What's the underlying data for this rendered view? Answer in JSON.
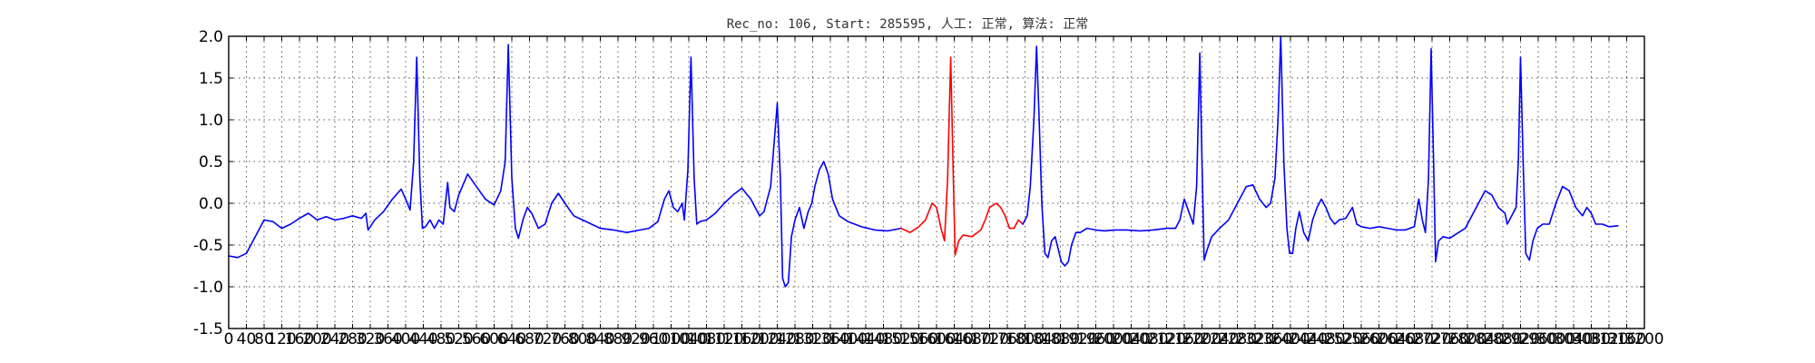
{
  "chart_data": {
    "type": "line",
    "title": "Rec_no: 106, Start: 285595, 人工: 正常, 算法: 正常",
    "xlabel": "",
    "ylabel": "",
    "xlim": [
      0,
      3200
    ],
    "ylim": [
      -1.5,
      2.0
    ],
    "grid": true,
    "y_ticks": [
      -1.5,
      -1.0,
      -0.5,
      0.0,
      0.5,
      1.0,
      1.5,
      2.0
    ],
    "y_tick_labels": [
      "-1.5",
      "-1.0",
      "-0.5",
      "0.0",
      "0.5",
      "1.0",
      "1.5",
      "2.0"
    ],
    "x_ticks": [
      0,
      40,
      80,
      120,
      160,
      200,
      240,
      280,
      320,
      360,
      400,
      440,
      480,
      520,
      560,
      600,
      640,
      680,
      720,
      760,
      800,
      840,
      880,
      920,
      960,
      1000,
      1040,
      1080,
      1120,
      1160,
      1200,
      1240,
      1280,
      1320,
      1360,
      1400,
      1440,
      1480,
      1520,
      1560,
      1600,
      1640,
      1680,
      1720,
      1760,
      1800,
      1840,
      1880,
      1920,
      1960,
      2000,
      2040,
      2080,
      2120,
      2160,
      2200,
      2240,
      2280,
      2320,
      2360,
      2400,
      2440,
      2480,
      2520,
      2560,
      2600,
      2640,
      2680,
      2720,
      2760,
      2800,
      2840,
      2880,
      2920,
      2960,
      3000,
      3040,
      3080,
      3120,
      3160,
      3200
    ],
    "x_tick_labels": [
      "0",
      "40",
      "80",
      "120",
      "160",
      "200",
      "240",
      "280",
      "320",
      "360",
      "400",
      "440",
      "480",
      "520",
      "560",
      "600",
      "640",
      "680",
      "720",
      "760",
      "800",
      "840",
      "880",
      "920",
      "960",
      "1000",
      "1040",
      "1080",
      "1120",
      "1160",
      "1200",
      "1240",
      "1280",
      "1320",
      "1360",
      "1400",
      "1440",
      "1480",
      "1520",
      "1560",
      "1600",
      "1640",
      "1680",
      "1720",
      "1760",
      "1800",
      "1840",
      "1880",
      "1920",
      "1960",
      "2000",
      "2040",
      "2080",
      "2120",
      "2160",
      "2200",
      "2240",
      "2280",
      "2320",
      "2360",
      "2400",
      "2440",
      "2480",
      "2520",
      "2560",
      "2600",
      "2640",
      "2680",
      "2720",
      "2760",
      "2800",
      "2840",
      "2880",
      "2920",
      "2960",
      "3000",
      "3040",
      "3080",
      "3120",
      "3160",
      "3200"
    ],
    "series": [
      {
        "color": "#0000ff",
        "points": [
          [
            0,
            -0.63
          ],
          [
            20,
            -0.65
          ],
          [
            40,
            -0.6
          ],
          [
            60,
            -0.4
          ],
          [
            80,
            -0.2
          ],
          [
            100,
            -0.22
          ],
          [
            120,
            -0.3
          ],
          [
            140,
            -0.25
          ],
          [
            160,
            -0.18
          ],
          [
            180,
            -0.12
          ],
          [
            200,
            -0.2
          ],
          [
            220,
            -0.16
          ],
          [
            240,
            -0.2
          ],
          [
            260,
            -0.18
          ],
          [
            280,
            -0.15
          ],
          [
            300,
            -0.18
          ],
          [
            310,
            -0.12
          ],
          [
            315,
            -0.32
          ],
          [
            330,
            -0.2
          ],
          [
            350,
            -0.1
          ],
          [
            370,
            0.05
          ],
          [
            390,
            0.17
          ],
          [
            400,
            0.05
          ],
          [
            410,
            -0.08
          ],
          [
            418,
            0.5
          ],
          [
            425,
            1.75
          ],
          [
            432,
            0.3
          ],
          [
            438,
            -0.3
          ],
          [
            445,
            -0.28
          ],
          [
            455,
            -0.2
          ],
          [
            465,
            -0.3
          ],
          [
            475,
            -0.2
          ],
          [
            485,
            -0.25
          ],
          [
            495,
            0.25
          ],
          [
            500,
            -0.05
          ],
          [
            510,
            -0.1
          ],
          [
            520,
            0.1
          ],
          [
            540,
            0.35
          ],
          [
            560,
            0.2
          ],
          [
            580,
            0.05
          ],
          [
            600,
            -0.02
          ],
          [
            615,
            0.15
          ],
          [
            625,
            0.5
          ],
          [
            632,
            1.9
          ],
          [
            640,
            0.3
          ],
          [
            648,
            -0.3
          ],
          [
            655,
            -0.42
          ],
          [
            665,
            -0.2
          ],
          [
            675,
            -0.05
          ],
          [
            685,
            -0.12
          ],
          [
            700,
            -0.3
          ],
          [
            715,
            -0.25
          ],
          [
            730,
            0.0
          ],
          [
            745,
            0.12
          ],
          [
            760,
            0.0
          ],
          [
            780,
            -0.15
          ],
          [
            800,
            -0.2
          ],
          [
            820,
            -0.25
          ],
          [
            840,
            -0.3
          ],
          [
            870,
            -0.32
          ],
          [
            900,
            -0.35
          ],
          [
            930,
            -0.32
          ],
          [
            950,
            -0.3
          ],
          [
            970,
            -0.22
          ],
          [
            985,
            0.05
          ],
          [
            995,
            0.15
          ],
          [
            1005,
            -0.05
          ],
          [
            1015,
            -0.1
          ],
          [
            1025,
            0.0
          ],
          [
            1030,
            -0.2
          ],
          [
            1038,
            0.4
          ],
          [
            1045,
            1.75
          ],
          [
            1052,
            0.3
          ],
          [
            1058,
            -0.25
          ],
          [
            1065,
            -0.22
          ],
          [
            1080,
            -0.2
          ],
          [
            1100,
            -0.12
          ],
          [
            1120,
            0.0
          ],
          [
            1140,
            0.1
          ],
          [
            1160,
            0.18
          ],
          [
            1180,
            0.05
          ],
          [
            1200,
            -0.15
          ],
          [
            1210,
            -0.1
          ],
          [
            1225,
            0.2
          ],
          [
            1240,
            1.2
          ],
          [
            1247,
            0.3
          ],
          [
            1252,
            -0.9
          ],
          [
            1258,
            -1.0
          ],
          [
            1265,
            -0.95
          ],
          [
            1272,
            -0.4
          ],
          [
            1280,
            -0.2
          ],
          [
            1290,
            -0.05
          ],
          [
            1300,
            -0.3
          ],
          [
            1310,
            -0.1
          ],
          [
            1318,
            0.0
          ],
          [
            1325,
            0.2
          ],
          [
            1335,
            0.4
          ],
          [
            1345,
            0.5
          ],
          [
            1355,
            0.35
          ],
          [
            1365,
            0.05
          ],
          [
            1380,
            -0.15
          ],
          [
            1400,
            -0.22
          ],
          [
            1430,
            -0.28
          ],
          [
            1460,
            -0.32
          ],
          [
            1490,
            -0.33
          ],
          [
            1520,
            -0.3
          ]
        ]
      },
      {
        "color": "#ff0000",
        "points": [
          [
            1520,
            -0.3
          ],
          [
            1540,
            -0.35
          ],
          [
            1560,
            -0.28
          ],
          [
            1575,
            -0.2
          ],
          [
            1590,
            0.0
          ],
          [
            1600,
            -0.05
          ],
          [
            1610,
            -0.3
          ],
          [
            1618,
            -0.45
          ],
          [
            1625,
            0.3
          ],
          [
            1632,
            1.75
          ],
          [
            1638,
            0.3
          ],
          [
            1642,
            -0.62
          ],
          [
            1650,
            -0.45
          ],
          [
            1660,
            -0.38
          ],
          [
            1680,
            -0.4
          ],
          [
            1700,
            -0.32
          ],
          [
            1710,
            -0.2
          ],
          [
            1720,
            -0.05
          ],
          [
            1735,
            0.0
          ],
          [
            1745,
            -0.05
          ],
          [
            1755,
            -0.15
          ],
          [
            1765,
            -0.3
          ],
          [
            1775,
            -0.3
          ],
          [
            1785,
            -0.2
          ],
          [
            1795,
            -0.25
          ]
        ]
      },
      {
        "color": "#0000ff",
        "points": [
          [
            1795,
            -0.25
          ],
          [
            1805,
            -0.15
          ],
          [
            1812,
            0.2
          ],
          [
            1820,
            1.0
          ],
          [
            1826,
            1.88
          ],
          [
            1832,
            1.0
          ],
          [
            1838,
            0.0
          ],
          [
            1845,
            -0.6
          ],
          [
            1852,
            -0.65
          ],
          [
            1860,
            -0.45
          ],
          [
            1868,
            -0.4
          ],
          [
            1875,
            -0.55
          ],
          [
            1882,
            -0.7
          ],
          [
            1890,
            -0.75
          ],
          [
            1898,
            -0.7
          ],
          [
            1905,
            -0.5
          ],
          [
            1915,
            -0.35
          ],
          [
            1925,
            -0.35
          ],
          [
            1940,
            -0.3
          ],
          [
            1960,
            -0.32
          ],
          [
            1980,
            -0.33
          ],
          [
            2000,
            -0.32
          ],
          [
            2030,
            -0.32
          ],
          [
            2060,
            -0.33
          ],
          [
            2090,
            -0.32
          ],
          [
            2120,
            -0.3
          ],
          [
            2140,
            -0.3
          ],
          [
            2150,
            -0.2
          ],
          [
            2160,
            0.05
          ],
          [
            2170,
            -0.1
          ],
          [
            2180,
            -0.25
          ],
          [
            2188,
            0.2
          ],
          [
            2195,
            1.8
          ],
          [
            2200,
            0.5
          ],
          [
            2205,
            -0.68
          ],
          [
            2212,
            -0.55
          ],
          [
            2222,
            -0.4
          ],
          [
            2240,
            -0.3
          ],
          [
            2260,
            -0.2
          ],
          [
            2280,
            0.0
          ],
          [
            2300,
            0.2
          ],
          [
            2315,
            0.22
          ],
          [
            2330,
            0.05
          ],
          [
            2345,
            -0.05
          ],
          [
            2355,
            0.0
          ],
          [
            2365,
            0.3
          ],
          [
            2372,
            1.0
          ],
          [
            2378,
            2.0
          ],
          [
            2385,
            0.5
          ],
          [
            2392,
            -0.3
          ],
          [
            2398,
            -0.6
          ],
          [
            2405,
            -0.6
          ],
          [
            2412,
            -0.3
          ],
          [
            2420,
            -0.1
          ],
          [
            2430,
            -0.35
          ],
          [
            2440,
            -0.45
          ],
          [
            2450,
            -0.2
          ],
          [
            2460,
            -0.05
          ],
          [
            2470,
            0.05
          ],
          [
            2480,
            -0.05
          ],
          [
            2490,
            -0.18
          ],
          [
            2500,
            -0.25
          ],
          [
            2510,
            -0.2
          ],
          [
            2525,
            -0.18
          ],
          [
            2540,
            -0.05
          ],
          [
            2550,
            -0.25
          ],
          [
            2560,
            -0.28
          ],
          [
            2580,
            -0.3
          ],
          [
            2600,
            -0.28
          ],
          [
            2620,
            -0.3
          ],
          [
            2640,
            -0.32
          ],
          [
            2660,
            -0.32
          ],
          [
            2680,
            -0.28
          ],
          [
            2690,
            0.05
          ],
          [
            2698,
            -0.2
          ],
          [
            2705,
            -0.35
          ],
          [
            2712,
            0.3
          ],
          [
            2718,
            1.85
          ],
          [
            2724,
            0.4
          ],
          [
            2728,
            -0.7
          ],
          [
            2735,
            -0.45
          ],
          [
            2745,
            -0.4
          ],
          [
            2760,
            -0.42
          ],
          [
            2780,
            -0.35
          ],
          [
            2795,
            -0.3
          ],
          [
            2810,
            -0.15
          ],
          [
            2825,
            0.0
          ],
          [
            2840,
            0.15
          ],
          [
            2855,
            0.1
          ],
          [
            2870,
            -0.05
          ],
          [
            2885,
            -0.12
          ],
          [
            2890,
            -0.25
          ],
          [
            2900,
            -0.15
          ],
          [
            2910,
            -0.05
          ],
          [
            2915,
            0.5
          ],
          [
            2920,
            1.75
          ],
          [
            2926,
            0.5
          ],
          [
            2932,
            -0.6
          ],
          [
            2940,
            -0.68
          ],
          [
            2948,
            -0.45
          ],
          [
            2958,
            -0.3
          ],
          [
            2970,
            -0.25
          ],
          [
            2985,
            -0.25
          ],
          [
            3000,
            0.0
          ],
          [
            3015,
            0.2
          ],
          [
            3030,
            0.15
          ],
          [
            3045,
            -0.05
          ],
          [
            3060,
            -0.15
          ],
          [
            3070,
            -0.05
          ],
          [
            3080,
            -0.12
          ],
          [
            3090,
            -0.25
          ],
          [
            3105,
            -0.25
          ],
          [
            3120,
            -0.28
          ],
          [
            3140,
            -0.27
          ]
        ]
      }
    ]
  }
}
